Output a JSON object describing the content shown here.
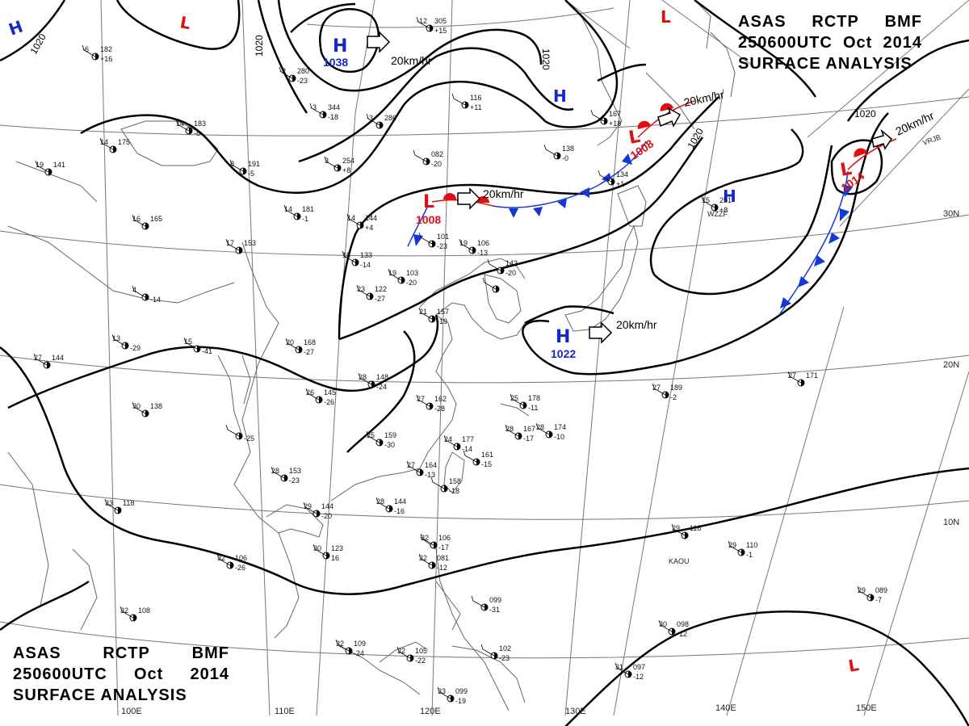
{
  "title_top_right": {
    "line1": [
      "ASAS",
      "RCTP",
      "BMF"
    ],
    "line2": [
      "250600UTC",
      "Oct",
      "2014"
    ],
    "line3": "SURFACE ANALYSIS"
  },
  "title_bottom_left": {
    "line1": [
      "ASAS",
      "RCTP",
      "BMF"
    ],
    "line2": [
      "250600UTC",
      "Oct",
      "2014"
    ],
    "line3": "SURFACE ANALYSIS"
  },
  "isobar_labels": [
    "1020",
    "1020",
    "1020",
    "1020",
    "1020"
  ],
  "pressure_systems": [
    {
      "type": "H",
      "value": "1038",
      "color": "#1428c8"
    },
    {
      "type": "L",
      "value": "1008",
      "color": "#e01010"
    },
    {
      "type": "L",
      "value": "1008",
      "color": "#e01010"
    },
    {
      "type": "L",
      "value": "1014",
      "color": "#e01010"
    },
    {
      "type": "H",
      "value": "1022",
      "color": "#1428c8"
    },
    {
      "type": "H",
      "value": "",
      "color": "#1428c8"
    },
    {
      "type": "H",
      "value": "",
      "color": "#1428c8"
    },
    {
      "type": "H",
      "value": "",
      "color": "#1428c8"
    },
    {
      "type": "L",
      "value": "",
      "color": "#e01010"
    },
    {
      "type": "L",
      "value": "",
      "color": "#e01010"
    },
    {
      "type": "L",
      "value": "",
      "color": "#e01010"
    }
  ],
  "motion_labels": [
    "20km/hr",
    "20km/hr",
    "20km/hr",
    "20km/hr",
    "20km/hr"
  ],
  "longitude_labels": [
    "100E",
    "110E",
    "120E",
    "130E",
    "140E",
    "150E"
  ],
  "latitude_labels": [
    "30N",
    "20N",
    "10N"
  ],
  "station_plots": [
    {
      "id": "a",
      "temp": "27",
      "press": "144",
      "tend": ""
    },
    {
      "id": "b",
      "temp": "30",
      "press": "138",
      "tend": ""
    },
    {
      "id": "c",
      "temp": "33",
      "press": "118",
      "tend": ""
    },
    {
      "id": "d",
      "temp": "32",
      "press": "106",
      "tend": "-26"
    },
    {
      "id": "e",
      "temp": "32",
      "press": "108",
      "tend": ""
    },
    {
      "id": "f",
      "temp": "28",
      "press": "153",
      "tend": "-23"
    },
    {
      "id": "g",
      "temp": "28",
      "press": "144",
      "tend": "-16"
    },
    {
      "id": "h",
      "temp": "30",
      "press": "123",
      "tend": "16"
    },
    {
      "id": "i",
      "temp": "29",
      "press": "144",
      "tend": "-20"
    },
    {
      "id": "j",
      "temp": "27",
      "press": "164",
      "tend": "-13"
    },
    {
      "id": "k",
      "temp": "",
      "press": "158",
      "tend": "-18"
    },
    {
      "id": "l",
      "temp": "24",
      "press": "177",
      "tend": "-14"
    },
    {
      "id": "m",
      "temp": "",
      "press": "161",
      "tend": "-15"
    },
    {
      "id": "n",
      "temp": "25",
      "press": "159",
      "tend": "-30"
    },
    {
      "id": "o",
      "temp": "28",
      "press": "148",
      "tend": "-24"
    },
    {
      "id": "p",
      "temp": "27",
      "press": "162",
      "tend": "-28"
    },
    {
      "id": "q",
      "temp": "26",
      "press": "145",
      "tend": "-26"
    },
    {
      "id": "r",
      "temp": "20",
      "press": "168",
      "tend": "-27"
    },
    {
      "id": "s",
      "temp": "25",
      "press": "178",
      "tend": "-11"
    },
    {
      "id": "t",
      "temp": "28",
      "press": "167",
      "tend": "-17"
    },
    {
      "id": "u",
      "temp": "28",
      "press": "174",
      "tend": "-10"
    },
    {
      "id": "v",
      "temp": "27",
      "press": "189",
      "tend": "-2"
    },
    {
      "id": "w",
      "temp": "27",
      "press": "171",
      "tend": ""
    },
    {
      "id": "x",
      "temp": "29",
      "press": "118",
      "tend": ""
    },
    {
      "id": "y",
      "temp": "29",
      "press": "110",
      "tend": "-1"
    },
    {
      "id": "z",
      "temp": "29",
      "press": "089",
      "tend": "-7"
    },
    {
      "id": "aa",
      "temp": "30",
      "press": "098",
      "tend": "-12"
    },
    {
      "id": "ab",
      "temp": "31",
      "press": "097",
      "tend": "-12"
    },
    {
      "id": "ac",
      "temp": "32",
      "press": "109",
      "tend": "-24"
    },
    {
      "id": "ad",
      "temp": "32",
      "press": "105",
      "tend": "-22"
    },
    {
      "id": "ae",
      "temp": "33",
      "press": "099",
      "tend": "-19"
    },
    {
      "id": "af",
      "temp": "32",
      "press": "106",
      "tend": "-17"
    },
    {
      "id": "ag",
      "temp": "32",
      "press": "081",
      "tend": "-12"
    },
    {
      "id": "ah",
      "temp": "",
      "press": "099",
      "tend": "-31"
    },
    {
      "id": "ai",
      "temp": "",
      "press": "102",
      "tend": "-23"
    },
    {
      "id": "aj",
      "temp": "14",
      "press": "183",
      "tend": "-8"
    },
    {
      "id": "ak",
      "temp": "14",
      "press": "175",
      "tend": ""
    },
    {
      "id": "al",
      "temp": "19",
      "press": "141",
      "tend": ""
    },
    {
      "id": "am",
      "temp": "16",
      "press": "165",
      "tend": ""
    },
    {
      "id": "an",
      "temp": "17",
      "press": "153",
      "tend": ""
    },
    {
      "id": "ao",
      "temp": "8",
      "press": "191",
      "tend": "-5"
    },
    {
      "id": "ap",
      "temp": "14",
      "press": "181",
      "tend": "-1"
    },
    {
      "id": "aq",
      "temp": "14",
      "press": "144",
      "tend": "+4"
    },
    {
      "id": "ar",
      "temp": "18",
      "press": "133",
      "tend": "-14"
    },
    {
      "id": "as",
      "temp": "23",
      "press": "122",
      "tend": "-27"
    },
    {
      "id": "at",
      "temp": "19",
      "press": "103",
      "tend": "-20"
    },
    {
      "id": "au",
      "temp": "",
      "press": "101",
      "tend": "-23"
    },
    {
      "id": "av",
      "temp": "19",
      "press": "106",
      "tend": "-13"
    },
    {
      "id": "aw",
      "temp": "",
      "press": "142",
      "tend": "-20"
    },
    {
      "id": "ax",
      "temp": "21",
      "press": "157",
      "tend": "-19"
    },
    {
      "id": "ay",
      "temp": "",
      "press": "082",
      "tend": "-20"
    },
    {
      "id": "az",
      "temp": "",
      "press": "116",
      "tend": "+11"
    },
    {
      "id": "ba",
      "temp": "",
      "press": "138",
      "tend": "-0"
    },
    {
      "id": "bb",
      "temp": "",
      "press": "134",
      "tend": "+1"
    },
    {
      "id": "bc",
      "temp": "",
      "press": "167",
      "tend": "+18"
    },
    {
      "id": "bd",
      "temp": "15",
      "press": "251",
      "tend": "+8"
    },
    {
      "id": "be",
      "temp": "-6",
      "press": "182",
      "tend": "+16"
    },
    {
      "id": "bf",
      "temp": "-2",
      "press": "280",
      "tend": "-23"
    },
    {
      "id": "bg",
      "temp": "-3",
      "press": "344",
      "tend": "-18"
    },
    {
      "id": "bh",
      "temp": "-3",
      "press": "286",
      "tend": ""
    },
    {
      "id": "bi",
      "temp": "3",
      "press": "254",
      "tend": "+8"
    },
    {
      "id": "bj",
      "temp": "-12",
      "press": "305",
      "tend": "+15"
    },
    {
      "id": "bk",
      "temp": "",
      "press": "",
      "tend": ""
    },
    {
      "id": "bl",
      "temp": "4",
      "press": "",
      "tend": "-14"
    },
    {
      "id": "bm",
      "temp": "15",
      "press": "",
      "tend": "-41"
    },
    {
      "id": "bn",
      "temp": "13",
      "press": "",
      "tend": "-29"
    },
    {
      "id": "bo",
      "temp": "",
      "press": "",
      "tend": "-25"
    }
  ],
  "station_ids": [
    "KAOU",
    "WZZF",
    "VRJB"
  ],
  "colors": {
    "high": "#1428c8",
    "low": "#e01010",
    "cold_front": "#1438d8",
    "warm_front": "#e01010",
    "isobar": "#000000",
    "coast": "#555555",
    "grid": "#777777"
  }
}
